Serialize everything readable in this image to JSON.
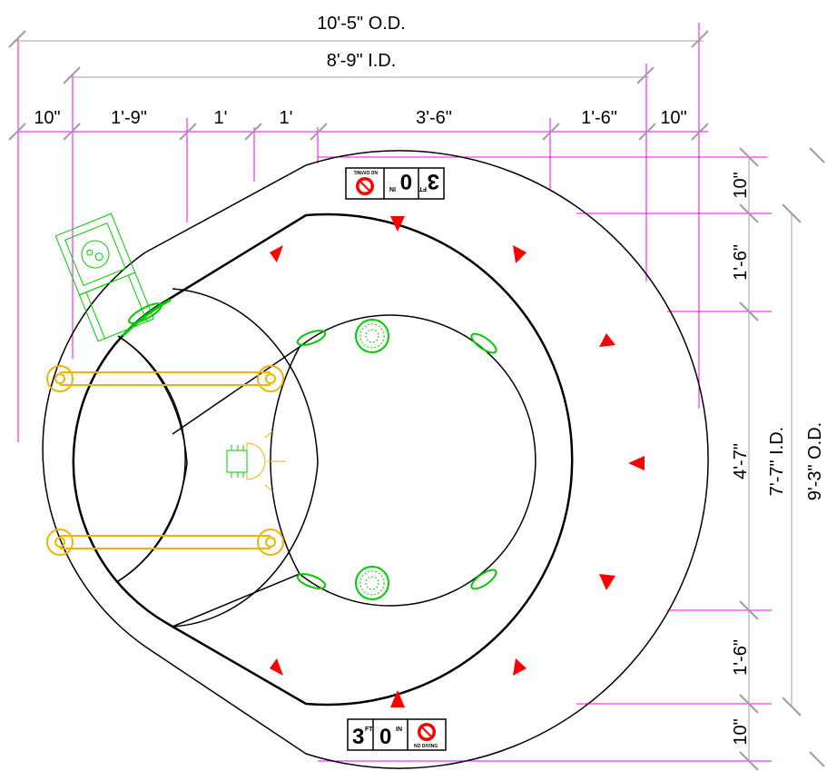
{
  "dimensions": {
    "top": {
      "overall_od": "10'-5\" O.D.",
      "overall_id": "8'-9\" I.D.",
      "segments": [
        "10\"",
        "1'-9\"",
        "1'",
        "1'",
        "3'-6\"",
        "1'-6\"",
        "10\""
      ]
    },
    "right": {
      "segments": [
        "10\"",
        "1'-6\"",
        "4'-7\"",
        "1'-6\"",
        "10\""
      ],
      "overall_id": "7'-7\" I.D.",
      "overall_od": "9'-3\" O.D."
    }
  },
  "depth_markers": [
    {
      "feet": "3",
      "feet_unit": "FT",
      "inches": "0",
      "inches_unit": "IN",
      "label": "NO DIVING"
    },
    {
      "feet": "3",
      "feet_unit": "FT",
      "inches": "0",
      "inches_unit": "IN",
      "label": "NO DIVING"
    }
  ],
  "colors": {
    "outline": "#000000",
    "dimension": "#ff00ff",
    "equipment": "#00cc00",
    "handrail": "#f0b400",
    "jet": "#ff0000",
    "leader": "#a0a0a0"
  }
}
